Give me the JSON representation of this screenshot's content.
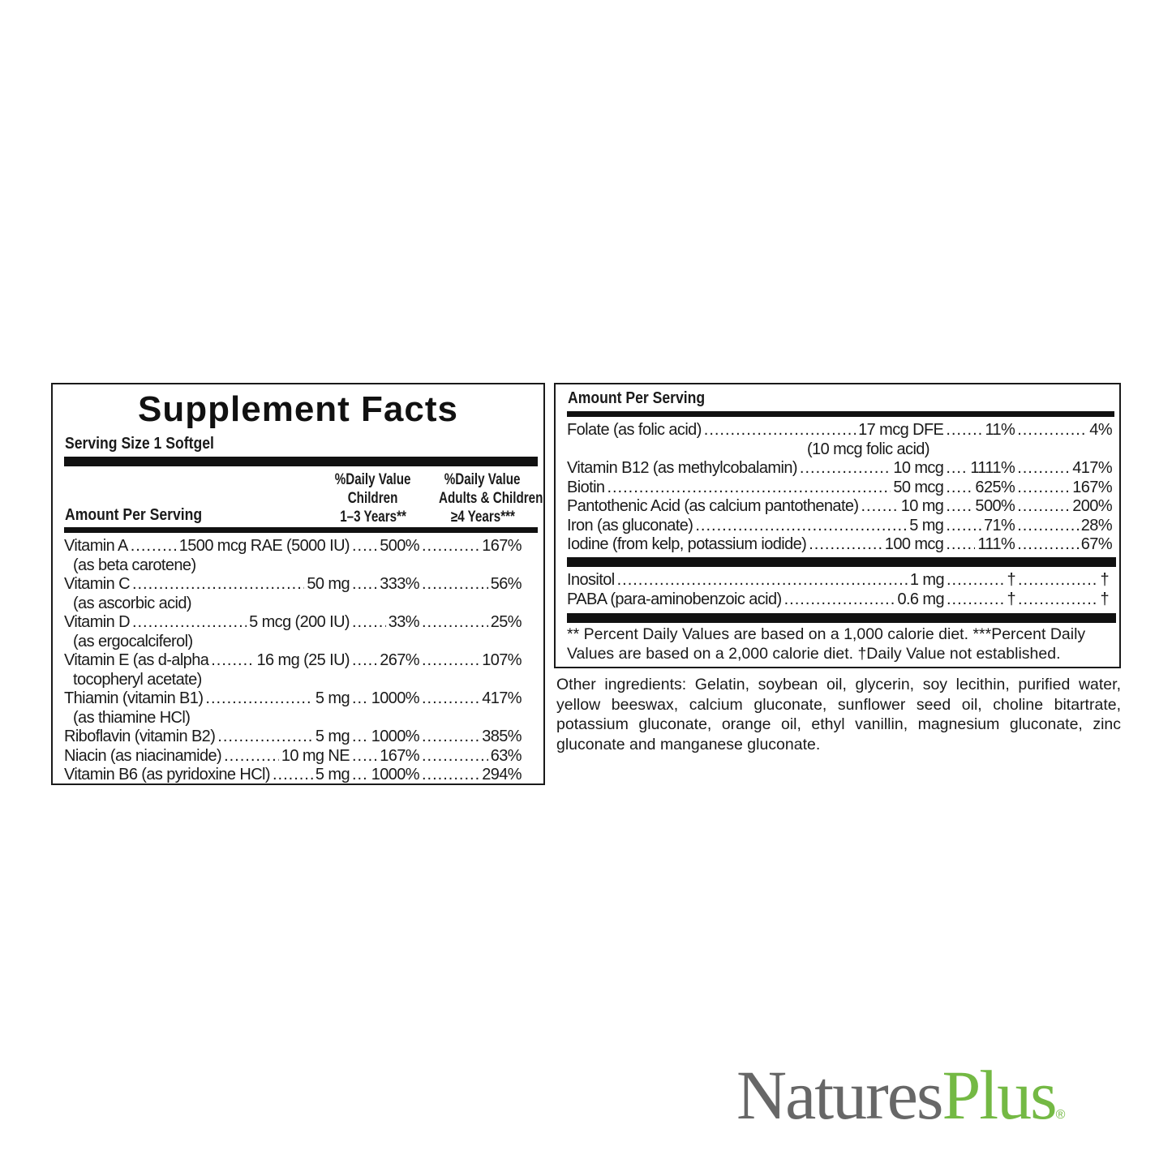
{
  "label": {
    "title": "Supplement Facts",
    "serving_size": "Serving Size 1 Softgel",
    "amount_per_serving": "Amount Per Serving",
    "col_children": [
      "%Daily Value",
      "Children",
      "1–3 Years**"
    ],
    "col_adults": [
      "%Daily Value",
      "Adults & Children",
      "≥4 Years***"
    ],
    "left_rows": [
      {
        "name": "Vitamin A",
        "amount": "1500 mcg RAE (5000 IU)",
        "dv_children": "500%",
        "dv_adults": "167%",
        "sub": "(as beta carotene)"
      },
      {
        "name": "Vitamin C",
        "amount": "50 mg",
        "dv_children": "333%",
        "dv_adults": "56%",
        "sub": "(as ascorbic acid)"
      },
      {
        "name": "Vitamin D",
        "amount": "5 mcg (200 IU)",
        "dv_children": "33%",
        "dv_adults": "25%",
        "sub": "(as ergocalciferol)"
      },
      {
        "name": "Vitamin E (as d-alpha",
        "amount": "16 mg (25 IU)",
        "dv_children": "267%",
        "dv_adults": "107%",
        "sub": "tocopheryl acetate)"
      },
      {
        "name": "Thiamin (vitamin B1)",
        "amount": "5 mg",
        "dv_children": "1000%",
        "dv_adults": "417%",
        "sub": "(as thiamine HCl)"
      },
      {
        "name": "Riboflavin (vitamin B2)",
        "amount": "5 mg",
        "dv_children": "1000%",
        "dv_adults": "385%"
      },
      {
        "name": "Niacin (as niacinamide)",
        "amount": "10 mg NE",
        "dv_children": "167%",
        "dv_adults": "63%"
      },
      {
        "name": "Vitamin B6 (as pyridoxine HCl)",
        "amount": "5 mg",
        "dv_children": "1000%",
        "dv_adults": "294%"
      }
    ],
    "right_rows": [
      {
        "name": "Folate (as folic acid)",
        "amount": "17 mcg DFE",
        "dv_children": "11%",
        "dv_adults": "4%",
        "sub": "(10 mcg folic acid)"
      },
      {
        "name": "Vitamin B12 (as methylcobalamin)",
        "amount": "10 mcg",
        "dv_children": "1111%",
        "dv_adults": "417%"
      },
      {
        "name": "Biotin",
        "amount": "50 mcg",
        "dv_children": "625%",
        "dv_adults": "167%"
      },
      {
        "name": "Pantothenic Acid (as calcium pantothenate)",
        "amount": "10 mg",
        "dv_children": "500%",
        "dv_adults": "200%"
      },
      {
        "name": "Iron (as gluconate)",
        "amount": "5 mg",
        "dv_children": "71%",
        "dv_adults": "28%"
      },
      {
        "name": "Iodine (from kelp, potassium iodide)",
        "amount": "100 mcg",
        "dv_children": "111%",
        "dv_adults": "67%"
      }
    ],
    "right_rows_2": [
      {
        "name": "Inositol",
        "amount": "1 mg",
        "dv_children": "†",
        "dv_adults": "†"
      },
      {
        "name": "PABA (para-aminobenzoic acid)",
        "amount": "0.6 mg",
        "dv_children": "†",
        "dv_adults": "†"
      }
    ],
    "footnote_1": "** Percent Daily Values are based on a 1,000 calorie diet.  ***Percent Daily",
    "footnote_2": "Values are based on a 2,000 calorie diet.  †Daily Value not established."
  },
  "other_ingredients": "Other ingredients: Gelatin, soybean oil, glycerin, soy lecithin, purified water, yellow beeswax, calcium gluconate, sunflower seed oil, choline bitartrate, potassium gluconate, orange oil, ethyl vanillin, magnesium gluconate, zinc gluconate and manganese gluconate.",
  "logo": {
    "part1": "Natures",
    "part2": "Plus",
    "mark": "®",
    "colors": {
      "natures": "#676767",
      "plus": "#74b944"
    }
  }
}
